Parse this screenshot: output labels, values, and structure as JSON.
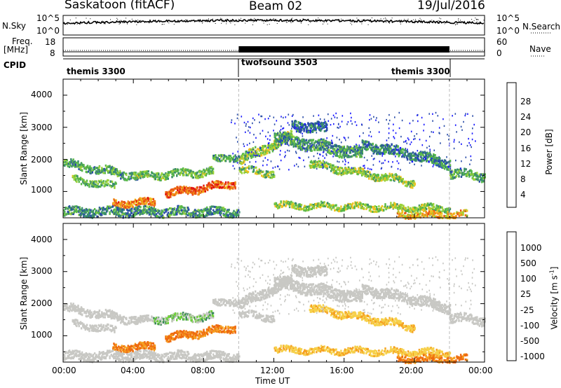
{
  "header": {
    "station": "Saskatoon (fitACF)",
    "beam": "Beam 02",
    "date": "19/Jul/2016"
  },
  "side_labels": {
    "nsky": "N.Sky",
    "nsearch": "N.Search",
    "freq": "Freq.",
    "freq_unit": "[MHz]",
    "nave": "Nave",
    "cpid": "CPID"
  },
  "aux_ticks": {
    "nsky_top": "10^5",
    "nsky_bottom": "10^0",
    "nsearch_top": "10^5",
    "nsearch_bottom": "10^0",
    "freq_top": "18",
    "freq_bottom": "8",
    "nave_top": "60",
    "nave_bottom": "0"
  },
  "cpid_segments": [
    {
      "label": "themis 3300",
      "start_h": 0,
      "end_h": 10
    },
    {
      "label": "twofsound 3503",
      "start_h": 10,
      "end_h": 22
    },
    {
      "label": "themis 3300",
      "start_h": 22,
      "end_h": 24
    }
  ],
  "colors": {
    "power": [
      "#1a1aff",
      "#2a4da8",
      "#3a8c6e",
      "#58b848",
      "#9bd23a",
      "#f0c020",
      "#f08a18",
      "#e85014",
      "#e01010"
    ],
    "velocity": [
      "#e01010",
      "#ee6a10",
      "#f5a020",
      "#f6d04a",
      "#c8c8c4",
      "#c8c8c4",
      "#6fcf3a",
      "#3a8a5a",
      "#2a4da8",
      "#1a1aff"
    ]
  },
  "chart_data": [
    {
      "type": "heatmap",
      "name": "power",
      "ylabel": "Slant Range [km]",
      "y_ticks": [
        "1000",
        "2000",
        "3000",
        "4000"
      ],
      "ylim": [
        180,
        4500
      ],
      "colorbar_label": "Power [dB]",
      "colorbar_ticks": [
        "4",
        "8",
        "12",
        "16",
        "20",
        "24",
        "28"
      ],
      "colorbar_range": [
        0,
        30
      ]
    },
    {
      "type": "heatmap",
      "name": "velocity",
      "ylabel": "Slant Range [km]",
      "y_ticks": [
        "1000",
        "2000",
        "3000",
        "4000"
      ],
      "ylim": [
        180,
        4500
      ],
      "colorbar_label": "Velocity [m s",
      "colorbar_label_sup": "-1",
      "colorbar_label_end": "]",
      "colorbar_ticks": [
        "1000",
        "500",
        "100",
        "25",
        "-25",
        "-100",
        "-500",
        "-1000"
      ]
    }
  ],
  "x_axis": {
    "label": "Time UT",
    "ticks": [
      "00:00",
      "04:00",
      "08:00",
      "12:00",
      "16:00",
      "20:00",
      "00:00"
    ],
    "range_h": [
      0,
      24
    ]
  }
}
